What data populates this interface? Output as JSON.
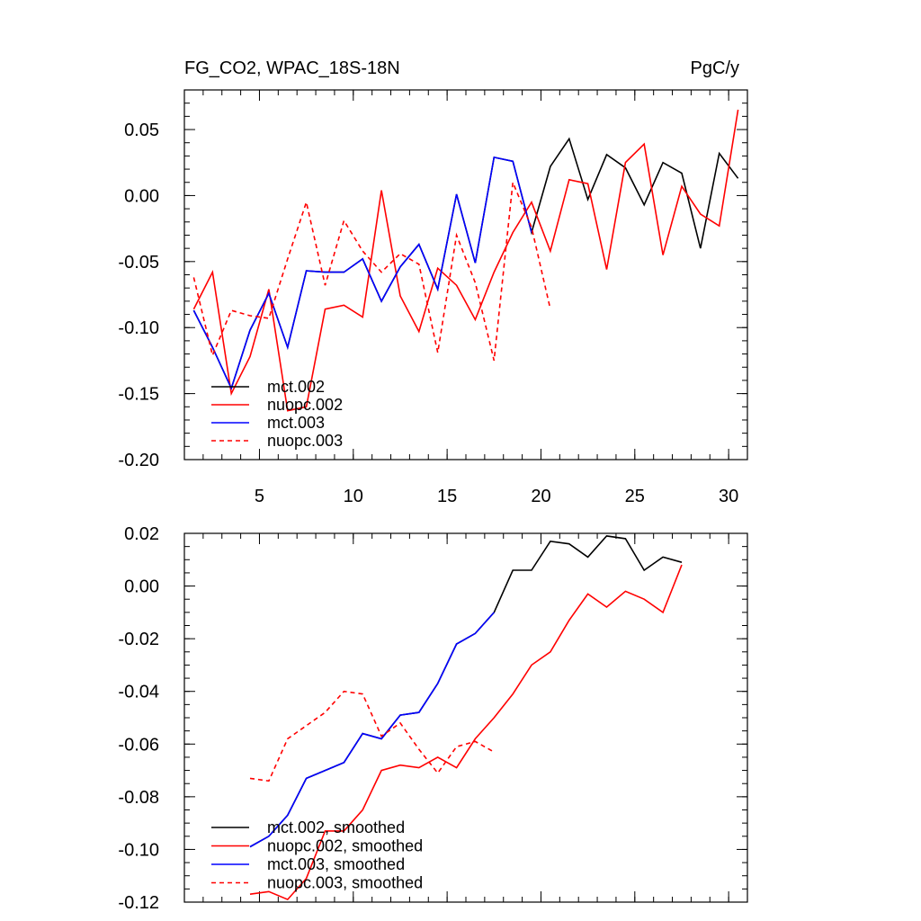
{
  "chart_data": [
    {
      "type": "line",
      "title_left": "FG_CO2, WPAC_18S-18N",
      "title_right": "PgC/y",
      "xlim": [
        1,
        31
      ],
      "ylim": [
        -0.2,
        0.08
      ],
      "xticks": [
        5,
        10,
        15,
        20,
        25,
        30
      ],
      "xtick_labels": [
        "5",
        "10",
        "15",
        "20",
        "25",
        "30"
      ],
      "yticks": [
        -0.2,
        -0.15,
        -0.1,
        -0.05,
        0.0,
        0.05
      ],
      "ytick_labels": [
        "-0.20",
        "-0.15",
        "-0.10",
        "-0.05",
        "0.00",
        "0.05"
      ],
      "legend_position": "bottom-left",
      "series": [
        {
          "name": "mct.002",
          "color": "#000000",
          "dash": false,
          "x": [
            1.5,
            2.5,
            3.5,
            4.5,
            5.5,
            6.5,
            7.5,
            8.5,
            9.5,
            10.5,
            11.5,
            12.5,
            13.5,
            14.5,
            15.5,
            16.5,
            17.5,
            18.5,
            19.5,
            20.5,
            21.5,
            22.5,
            23.5,
            24.5,
            25.5,
            26.5,
            27.5,
            28.5,
            29.5,
            30.5
          ],
          "y": [
            -0.087,
            -0.115,
            -0.146,
            -0.102,
            -0.074,
            -0.115,
            -0.057,
            -0.058,
            -0.058,
            -0.048,
            -0.08,
            -0.054,
            -0.037,
            -0.071,
            0.001,
            -0.051,
            0.029,
            0.026,
            -0.028,
            0.022,
            0.043,
            -0.003,
            0.031,
            0.021,
            -0.007,
            0.025,
            0.017,
            -0.04,
            0.032,
            0.013
          ]
        },
        {
          "name": "nuopc.002",
          "color": "#ff0000",
          "dash": false,
          "x": [
            1.5,
            2.5,
            3.5,
            4.5,
            5.5,
            6.5,
            7.5,
            8.5,
            9.5,
            10.5,
            11.5,
            12.5,
            13.5,
            14.5,
            15.5,
            16.5,
            17.5,
            18.5,
            19.5,
            20.5,
            21.5,
            22.5,
            23.5,
            24.5,
            25.5,
            26.5,
            27.5,
            28.5,
            29.5,
            30.5
          ],
          "y": [
            -0.086,
            -0.058,
            -0.15,
            -0.122,
            -0.071,
            -0.163,
            -0.16,
            -0.086,
            -0.083,
            -0.092,
            0.004,
            -0.076,
            -0.103,
            -0.055,
            -0.068,
            -0.094,
            -0.058,
            -0.028,
            -0.005,
            -0.042,
            0.012,
            0.009,
            -0.056,
            0.025,
            0.039,
            -0.045,
            0.007,
            -0.014,
            -0.023,
            0.065
          ]
        },
        {
          "name": "mct.003",
          "color": "#0000ff",
          "dash": false,
          "x": [
            1.5,
            2.5,
            3.5,
            4.5,
            5.5,
            6.5,
            7.5,
            8.5,
            9.5,
            10.5,
            11.5,
            12.5,
            13.5,
            14.5,
            15.5,
            16.5,
            17.5,
            18.5,
            19.5
          ],
          "y": [
            -0.087,
            -0.115,
            -0.146,
            -0.102,
            -0.074,
            -0.115,
            -0.057,
            -0.058,
            -0.058,
            -0.048,
            -0.08,
            -0.054,
            -0.037,
            -0.071,
            0.001,
            -0.051,
            0.029,
            0.026,
            -0.028
          ]
        },
        {
          "name": "nuopc.003",
          "color": "#ff0000",
          "dash": true,
          "x": [
            1.5,
            2.5,
            3.5,
            4.5,
            5.5,
            6.5,
            7.5,
            8.5,
            9.5,
            10.5,
            11.5,
            12.5,
            13.5,
            14.5,
            15.5,
            16.5,
            17.5,
            18.5,
            19.5,
            20.5
          ],
          "y": [
            -0.062,
            -0.121,
            -0.087,
            -0.091,
            -0.093,
            -0.048,
            -0.005,
            -0.068,
            -0.019,
            -0.042,
            -0.058,
            -0.044,
            -0.052,
            -0.119,
            -0.03,
            -0.066,
            -0.125,
            0.01,
            -0.024,
            -0.086
          ]
        }
      ]
    },
    {
      "type": "line",
      "xlim": [
        1,
        31
      ],
      "ylim": [
        -0.12,
        0.02
      ],
      "xticks": [
        5,
        10,
        15,
        20,
        25,
        30
      ],
      "xtick_labels": [],
      "yticks": [
        -0.12,
        -0.1,
        -0.08,
        -0.06,
        -0.04,
        -0.02,
        0.0,
        0.02
      ],
      "ytick_labels": [
        "-0.12",
        "-0.10",
        "-0.08",
        "-0.06",
        "-0.04",
        "-0.02",
        "0.00",
        "0.02"
      ],
      "legend_position": "bottom-left",
      "series": [
        {
          "name": "mct.002, smoothed",
          "color": "#000000",
          "dash": false,
          "x": [
            4.5,
            5.5,
            6.5,
            7.5,
            8.5,
            9.5,
            10.5,
            11.5,
            12.5,
            13.5,
            14.5,
            15.5,
            16.5,
            17.5,
            18.5,
            19.5,
            20.5,
            21.5,
            22.5,
            23.5,
            24.5,
            25.5,
            26.5,
            27.5
          ],
          "y": [
            -0.099,
            -0.095,
            -0.087,
            -0.073,
            -0.07,
            -0.067,
            -0.056,
            -0.058,
            -0.049,
            -0.048,
            -0.037,
            -0.022,
            -0.018,
            -0.01,
            0.006,
            0.006,
            0.017,
            0.016,
            0.011,
            0.019,
            0.018,
            0.006,
            0.011,
            0.009
          ]
        },
        {
          "name": "nuopc.002, smoothed",
          "color": "#ff0000",
          "dash": false,
          "x": [
            4.5,
            5.5,
            6.5,
            7.5,
            8.5,
            9.5,
            10.5,
            11.5,
            12.5,
            13.5,
            14.5,
            15.5,
            16.5,
            17.5,
            18.5,
            19.5,
            20.5,
            21.5,
            22.5,
            23.5,
            24.5,
            25.5,
            26.5,
            27.5
          ],
          "y": [
            -0.117,
            -0.116,
            -0.119,
            -0.111,
            -0.093,
            -0.093,
            -0.085,
            -0.07,
            -0.068,
            -0.069,
            -0.065,
            -0.069,
            -0.058,
            -0.05,
            -0.041,
            -0.03,
            -0.025,
            -0.013,
            -0.003,
            -0.008,
            -0.002,
            -0.005,
            -0.01,
            0.008
          ]
        },
        {
          "name": "mct.003, smoothed",
          "color": "#0000ff",
          "dash": false,
          "x": [
            4.5,
            5.5,
            6.5,
            7.5,
            8.5,
            9.5,
            10.5,
            11.5,
            12.5,
            13.5,
            14.5,
            15.5,
            16.5,
            17.5
          ],
          "y": [
            -0.099,
            -0.095,
            -0.087,
            -0.073,
            -0.07,
            -0.067,
            -0.056,
            -0.058,
            -0.049,
            -0.048,
            -0.037,
            -0.022,
            -0.018,
            -0.01
          ]
        },
        {
          "name": "nuopc.003, smoothed",
          "color": "#ff0000",
          "dash": true,
          "x": [
            4.5,
            5.5,
            6.5,
            7.5,
            8.5,
            9.5,
            10.5,
            11.5,
            12.5,
            13.5,
            14.5,
            15.5,
            16.5,
            17.5
          ],
          "y": [
            -0.073,
            -0.074,
            -0.058,
            -0.053,
            -0.048,
            -0.04,
            -0.041,
            -0.057,
            -0.052,
            -0.062,
            -0.071,
            -0.061,
            -0.059,
            -0.063
          ]
        }
      ]
    }
  ]
}
